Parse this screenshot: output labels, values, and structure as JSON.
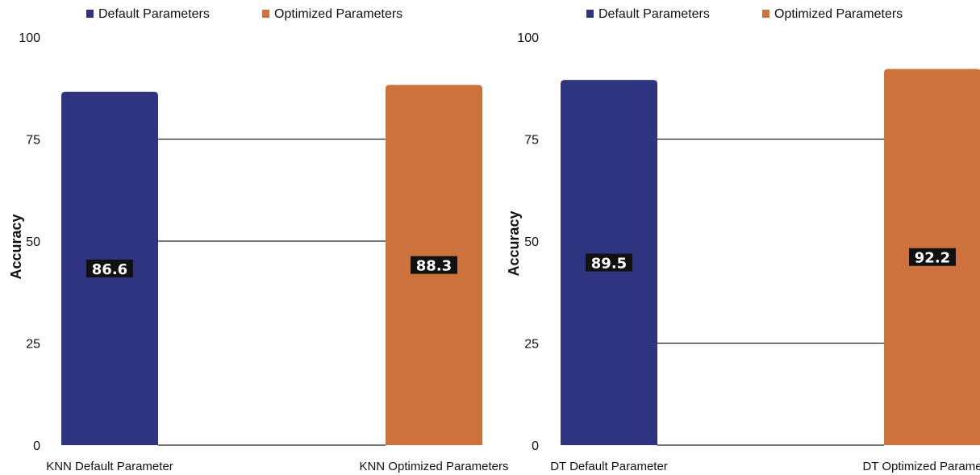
{
  "chart_data": [
    {
      "type": "bar",
      "categories": [
        "KNN Default Parameter",
        "KNN Optimized Parameters"
      ],
      "values": [
        86.6,
        88.3
      ],
      "value_labels": [
        "86.6",
        "88.3"
      ],
      "bar_colors": [
        "#2e3480",
        "#cd723c"
      ],
      "legend": [
        {
          "name": "Default Parameters",
          "color": "#2e3480"
        },
        {
          "name": "Optimized Parameters",
          "color": "#cd723c"
        }
      ],
      "legend_position": "top",
      "ylabel": "Accuracy",
      "ylim": [
        0,
        100
      ],
      "yticks": [
        "0",
        "25",
        "50",
        "75",
        "100"
      ],
      "gridlines_between_bars": [
        50,
        75
      ]
    },
    {
      "type": "bar",
      "categories": [
        "DT Default Parameter",
        "DT Optimized Parameters"
      ],
      "values": [
        89.5,
        92.2
      ],
      "value_labels": [
        "89.5",
        "92.2"
      ],
      "bar_colors": [
        "#2e3480",
        "#cd723c"
      ],
      "legend": [
        {
          "name": "Default Parameters",
          "color": "#2e3480"
        },
        {
          "name": "Optimized Parameters",
          "color": "#cd723c"
        }
      ],
      "legend_position": "top",
      "ylabel": "Accuracy",
      "ylim": [
        0,
        100
      ],
      "yticks": [
        "0",
        "25",
        "50",
        "75",
        "100"
      ],
      "gridlines_between_bars": [
        25,
        75
      ]
    }
  ]
}
